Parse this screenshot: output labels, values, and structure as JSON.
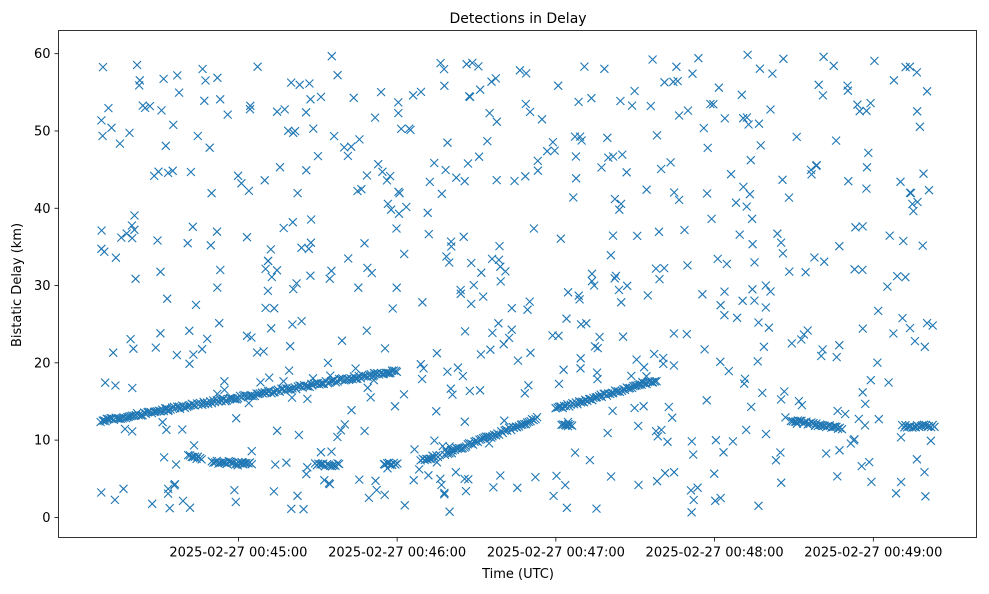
{
  "chart_data": {
    "type": "scatter",
    "title": "Detections in Delay",
    "xlabel": "Time (UTC)",
    "ylabel": "Bistatic Delay (km)",
    "x_unit": "UTC timestamp",
    "x_range": [
      "2025-02-27 00:44:08",
      "2025-02-27 00:49:23"
    ],
    "xlim": [
      "2025-02-27 00:43:52",
      "2025-02-27 00:49:39"
    ],
    "ylim": [
      -2.6,
      63.0
    ],
    "x_ticks": [
      "2025-02-27 00:45:00",
      "2025-02-27 00:46:00",
      "2025-02-27 00:47:00",
      "2025-02-27 00:48:00",
      "2025-02-27 00:49:00"
    ],
    "y_ticks": [
      0,
      10,
      20,
      30,
      40,
      50,
      60
    ],
    "marker": "x",
    "color": "#1f77b4",
    "grid": false,
    "legend": "none",
    "tracks": [
      {
        "from": [
          "2025-02-27 00:44:08",
          12.5
        ],
        "to": [
          "2025-02-27 00:46:00",
          19.0
        ]
      },
      {
        "from": [
          "2025-02-27 00:44:41",
          8.2
        ],
        "to": [
          "2025-02-27 00:44:46",
          7.5
        ]
      },
      {
        "from": [
          "2025-02-27 00:44:50",
          7.2
        ],
        "to": [
          "2025-02-27 00:45:05",
          6.9
        ]
      },
      {
        "from": [
          "2025-02-27 00:45:29",
          6.8
        ],
        "to": [
          "2025-02-27 00:45:38",
          6.8
        ]
      },
      {
        "from": [
          "2025-02-27 00:45:55",
          7.0
        ],
        "to": [
          "2025-02-27 00:46:00",
          7.0
        ]
      },
      {
        "from": [
          "2025-02-27 00:46:09",
          7.5
        ],
        "to": [
          "2025-02-27 00:46:16",
          8.0
        ]
      },
      {
        "from": [
          "2025-02-27 00:46:18",
          8.2
        ],
        "to": [
          "2025-02-27 00:46:53",
          12.8
        ]
      },
      {
        "from": [
          "2025-02-27 00:47:00",
          14.0
        ],
        "to": [
          "2025-02-27 00:47:38",
          17.8
        ]
      },
      {
        "from": [
          "2025-02-27 00:47:02",
          12.0
        ],
        "to": [
          "2025-02-27 00:47:06",
          12.0
        ]
      },
      {
        "from": [
          "2025-02-27 00:48:29",
          12.5
        ],
        "to": [
          "2025-02-27 00:48:48",
          11.5
        ]
      },
      {
        "from": [
          "2025-02-27 00:49:11",
          11.8
        ],
        "to": [
          "2025-02-27 00:49:23",
          11.8
        ]
      }
    ],
    "background_detections": {
      "count": 640,
      "y_range": [
        0.5,
        60.0
      ],
      "x_range": [
        "2025-02-27 00:44:08",
        "2025-02-27 00:49:23"
      ]
    }
  }
}
